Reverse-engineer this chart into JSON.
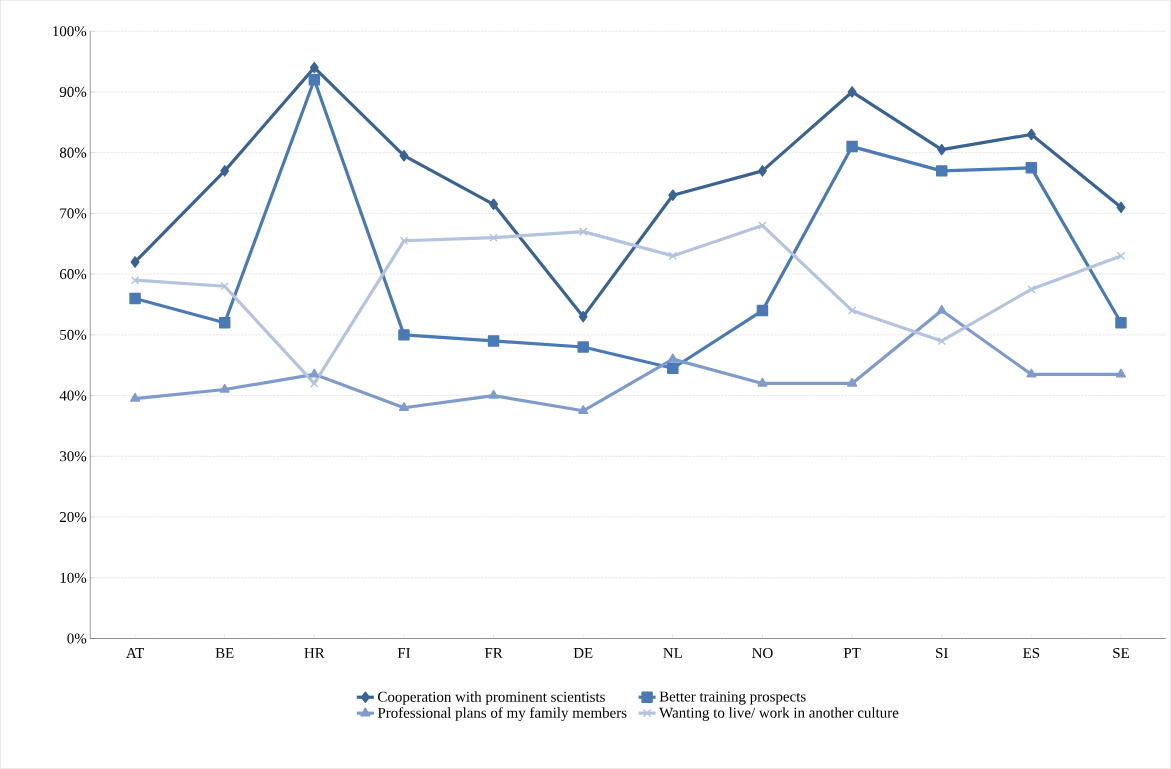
{
  "chart_data": {
    "type": "line",
    "categories": [
      "AT",
      "BE",
      "HR",
      "FI",
      "FR",
      "DE",
      "NL",
      "NO",
      "PT",
      "SI",
      "ES",
      "SE"
    ],
    "series": [
      {
        "name": "Cooperation with prominent scientists",
        "color": "#3a6393",
        "marker": "diamond",
        "values": [
          62,
          77,
          94,
          79.5,
          71.5,
          53,
          73,
          77,
          90,
          80.5,
          83,
          71
        ]
      },
      {
        "name": "Better training prospects",
        "color": "#4a7ab5",
        "marker": "square",
        "values": [
          56,
          52,
          92,
          50,
          49,
          48,
          44.5,
          54,
          81,
          77,
          77.5,
          52
        ]
      },
      {
        "name": "Professional plans of my family members",
        "color": "#7f9bcb",
        "marker": "triangle",
        "values": [
          39.5,
          41,
          43.5,
          38,
          40,
          37.5,
          46,
          42,
          42,
          54,
          43.5,
          43.5
        ]
      },
      {
        "name": "Wanting to live/ work in another culture",
        "color": "#b4c3de",
        "marker": "cross",
        "values": [
          59,
          58,
          42,
          65.5,
          66,
          67,
          63,
          68,
          54,
          49,
          57.5,
          63
        ]
      }
    ],
    "ylim": [
      0,
      100
    ],
    "yticks": [
      {
        "value": 0,
        "label": "0%"
      },
      {
        "value": 10,
        "label": "10%"
      },
      {
        "value": 20,
        "label": "20%"
      },
      {
        "value": 30,
        "label": "30%"
      },
      {
        "value": 40,
        "label": "40%"
      },
      {
        "value": 50,
        "label": "50%"
      },
      {
        "value": 60,
        "label": "60%"
      },
      {
        "value": 70,
        "label": "70%"
      },
      {
        "value": 80,
        "label": "80%"
      },
      {
        "value": 90,
        "label": "90%"
      },
      {
        "value": 100,
        "label": "100%"
      }
    ],
    "grid": "y",
    "legend": "bottom",
    "line_style": "solid"
  }
}
